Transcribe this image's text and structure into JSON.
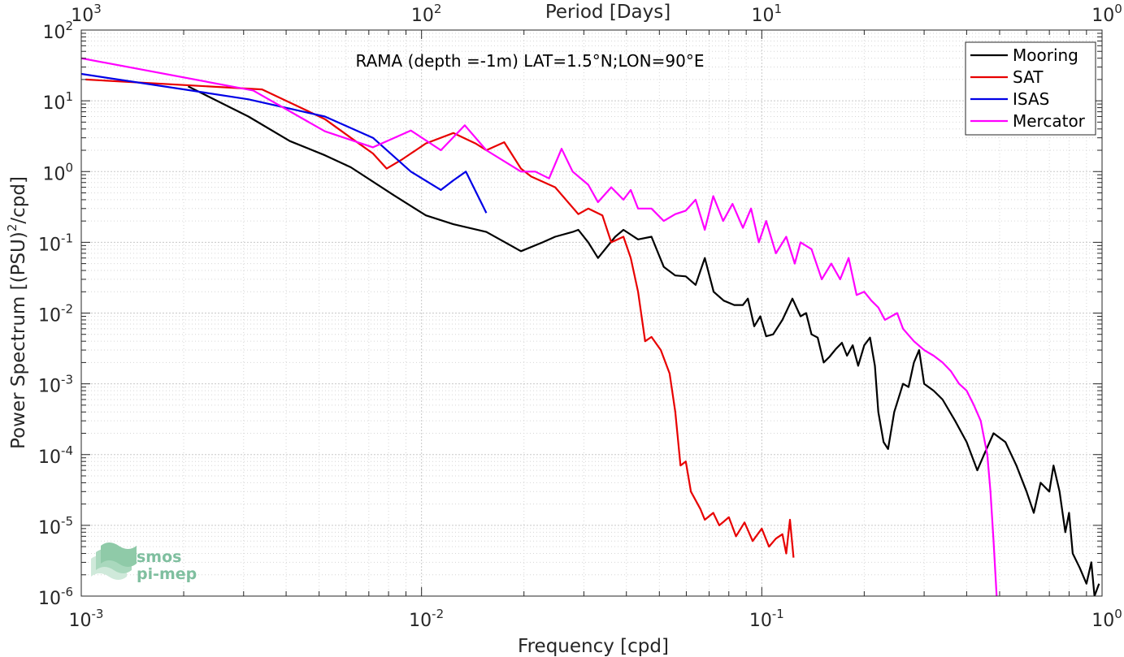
{
  "chart_data": {
    "type": "line",
    "title": "RAMA (depth =-1m) LAT=1.5°N;LON=90°E",
    "xlabel": "Frequency [cpd]",
    "ylabel_main": "Power Spectrum [(PSU)",
    "ylabel_sup": "2",
    "ylabel_tail": "/cpd]",
    "top_xlabel": "Period [Days]",
    "xscale": "log",
    "yscale": "log",
    "xlim": [
      0.001,
      1
    ],
    "ylim": [
      1e-06,
      100
    ],
    "grid": true,
    "legend_position": "top-right",
    "x_ticks": [
      {
        "value": 0.001,
        "base": "10",
        "exp": "-3"
      },
      {
        "value": 0.01,
        "base": "10",
        "exp": "-2"
      },
      {
        "value": 0.1,
        "base": "10",
        "exp": "-1"
      },
      {
        "value": 1,
        "base": "10",
        "exp": "0"
      }
    ],
    "top_ticks": [
      {
        "value": 0.001,
        "base": "10",
        "exp": "3"
      },
      {
        "value": 0.01,
        "base": "10",
        "exp": "2"
      },
      {
        "value": 0.1,
        "base": "10",
        "exp": "1"
      },
      {
        "value": 1,
        "base": "10",
        "exp": "0"
      }
    ],
    "y_ticks": [
      {
        "value": 1e-06,
        "base": "10",
        "exp": "-6"
      },
      {
        "value": 1e-05,
        "base": "10",
        "exp": "-5"
      },
      {
        "value": 0.0001,
        "base": "10",
        "exp": "-4"
      },
      {
        "value": 0.001,
        "base": "10",
        "exp": "-3"
      },
      {
        "value": 0.01,
        "base": "10",
        "exp": "-2"
      },
      {
        "value": 0.1,
        "base": "10",
        "exp": "-1"
      },
      {
        "value": 1,
        "base": "10",
        "exp": "0"
      },
      {
        "value": 10,
        "base": "10",
        "exp": "1"
      },
      {
        "value": 100,
        "base": "10",
        "exp": "2"
      }
    ],
    "series": [
      {
        "name": "Mooring",
        "color": "#000000",
        "points": [
          [
            0.00206,
            16
          ],
          [
            0.0031,
            6
          ],
          [
            0.0041,
            2.7
          ],
          [
            0.0052,
            1.7
          ],
          [
            0.0062,
            1.15
          ],
          [
            0.0083,
            0.46
          ],
          [
            0.0103,
            0.24
          ],
          [
            0.0124,
            0.18
          ],
          [
            0.0155,
            0.14
          ],
          [
            0.0196,
            0.075
          ],
          [
            0.0227,
            0.1
          ],
          [
            0.0247,
            0.12
          ],
          [
            0.0278,
            0.14
          ],
          [
            0.0289,
            0.15
          ],
          [
            0.0309,
            0.1
          ],
          [
            0.033,
            0.06
          ],
          [
            0.0371,
            0.12
          ],
          [
            0.0392,
            0.15
          ],
          [
            0.0433,
            0.11
          ],
          [
            0.0474,
            0.12
          ],
          [
            0.0515,
            0.045
          ],
          [
            0.0557,
            0.034
          ],
          [
            0.0598,
            0.033
          ],
          [
            0.0639,
            0.025
          ],
          [
            0.068,
            0.06
          ],
          [
            0.0722,
            0.02
          ],
          [
            0.0773,
            0.015
          ],
          [
            0.083,
            0.013
          ],
          [
            0.088,
            0.013
          ],
          [
            0.091,
            0.016
          ],
          [
            0.095,
            0.0065
          ],
          [
            0.099,
            0.009
          ],
          [
            0.103,
            0.0047
          ],
          [
            0.108,
            0.005
          ],
          [
            0.115,
            0.008
          ],
          [
            0.123,
            0.016
          ],
          [
            0.13,
            0.009
          ],
          [
            0.135,
            0.01
          ],
          [
            0.14,
            0.005
          ],
          [
            0.146,
            0.0045
          ],
          [
            0.152,
            0.002
          ],
          [
            0.158,
            0.0024
          ],
          [
            0.165,
            0.0031
          ],
          [
            0.172,
            0.0038
          ],
          [
            0.178,
            0.0025
          ],
          [
            0.185,
            0.0035
          ],
          [
            0.192,
            0.0018
          ],
          [
            0.2,
            0.0035
          ],
          [
            0.208,
            0.0045
          ],
          [
            0.215,
            0.0018
          ],
          [
            0.22,
            0.0004
          ],
          [
            0.228,
            0.00015
          ],
          [
            0.235,
            0.00012
          ],
          [
            0.245,
            0.0004
          ],
          [
            0.26,
            0.001
          ],
          [
            0.27,
            0.0009
          ],
          [
            0.28,
            0.002
          ],
          [
            0.29,
            0.003
          ],
          [
            0.3,
            0.001
          ],
          [
            0.32,
            0.0008
          ],
          [
            0.34,
            0.0006
          ],
          [
            0.37,
            0.0003
          ],
          [
            0.4,
            0.00015
          ],
          [
            0.43,
            6e-05
          ],
          [
            0.45,
            0.0001
          ],
          [
            0.48,
            0.0002
          ],
          [
            0.52,
            0.00015
          ],
          [
            0.56,
            7e-05
          ],
          [
            0.6,
            3e-05
          ],
          [
            0.63,
            1.5e-05
          ],
          [
            0.66,
            4e-05
          ],
          [
            0.7,
            3e-05
          ],
          [
            0.72,
            7e-05
          ],
          [
            0.75,
            3e-05
          ],
          [
            0.78,
            8e-06
          ],
          [
            0.8,
            1.5e-05
          ],
          [
            0.82,
            4e-06
          ],
          [
            0.86,
            2.5e-06
          ],
          [
            0.9,
            1.5e-06
          ],
          [
            0.93,
            3e-06
          ],
          [
            0.95,
            1e-06
          ],
          [
            0.98,
            1.5e-06
          ]
        ]
      },
      {
        "name": "SAT",
        "color": "#e80000",
        "points": [
          [
            0.00103,
            20
          ],
          [
            0.0034,
            14.5
          ],
          [
            0.0052,
            5.5
          ],
          [
            0.0062,
            3
          ],
          [
            0.0072,
            1.8
          ],
          [
            0.0079,
            1.1
          ],
          [
            0.0088,
            1.5
          ],
          [
            0.0103,
            2.5
          ],
          [
            0.0124,
            3.5
          ],
          [
            0.0144,
            2.5
          ],
          [
            0.0155,
            2
          ],
          [
            0.0175,
            2.6
          ],
          [
            0.0196,
            1.1
          ],
          [
            0.021,
            0.85
          ],
          [
            0.0247,
            0.6
          ],
          [
            0.0289,
            0.25
          ],
          [
            0.0309,
            0.3
          ],
          [
            0.034,
            0.24
          ],
          [
            0.0361,
            0.1
          ],
          [
            0.0392,
            0.12
          ],
          [
            0.0412,
            0.06
          ],
          [
            0.0433,
            0.02
          ],
          [
            0.0454,
            0.004
          ],
          [
            0.0474,
            0.0046
          ],
          [
            0.0505,
            0.003
          ],
          [
            0.0536,
            0.0014
          ],
          [
            0.0557,
            0.0004
          ],
          [
            0.0577,
            7e-05
          ],
          [
            0.0598,
            8e-05
          ],
          [
            0.0619,
            3e-05
          ],
          [
            0.066,
            1.7e-05
          ],
          [
            0.068,
            1.2e-05
          ],
          [
            0.072,
            1.5e-05
          ],
          [
            0.075,
            1e-05
          ],
          [
            0.08,
            1.3e-05
          ],
          [
            0.084,
            7e-06
          ],
          [
            0.089,
            1.1e-05
          ],
          [
            0.094,
            6e-06
          ],
          [
            0.1,
            9e-06
          ],
          [
            0.105,
            5e-06
          ],
          [
            0.11,
            6.5e-06
          ],
          [
            0.115,
            7.5e-06
          ],
          [
            0.118,
            4e-06
          ],
          [
            0.121,
            1.2e-05
          ],
          [
            0.124,
            3.5e-06
          ]
        ]
      },
      {
        "name": "ISAS",
        "color": "#0000e6",
        "points": [
          [
            0.001,
            24
          ],
          [
            0.0021,
            14
          ],
          [
            0.0031,
            10.5
          ],
          [
            0.0052,
            6
          ],
          [
            0.0072,
            3
          ],
          [
            0.0093,
            1
          ],
          [
            0.0114,
            0.55
          ],
          [
            0.0124,
            0.75
          ],
          [
            0.0135,
            1
          ],
          [
            0.0155,
            0.26
          ]
        ]
      },
      {
        "name": "Mercator",
        "color": "#ff00ff",
        "points": [
          [
            0.001,
            40
          ],
          [
            0.0032,
            14
          ],
          [
            0.0052,
            3.7
          ],
          [
            0.0072,
            2.2
          ],
          [
            0.0093,
            3.8
          ],
          [
            0.0114,
            2
          ],
          [
            0.0134,
            4.5
          ],
          [
            0.0155,
            2
          ],
          [
            0.0196,
            1
          ],
          [
            0.0216,
            1
          ],
          [
            0.0237,
            0.8
          ],
          [
            0.0258,
            2.1
          ],
          [
            0.0278,
            1
          ],
          [
            0.0309,
            0.65
          ],
          [
            0.033,
            0.37
          ],
          [
            0.0361,
            0.6
          ],
          [
            0.0392,
            0.4
          ],
          [
            0.0412,
            0.55
          ],
          [
            0.0433,
            0.3
          ],
          [
            0.0474,
            0.3
          ],
          [
            0.0515,
            0.2
          ],
          [
            0.0557,
            0.25
          ],
          [
            0.0598,
            0.28
          ],
          [
            0.0639,
            0.4
          ],
          [
            0.068,
            0.15
          ],
          [
            0.072,
            0.45
          ],
          [
            0.077,
            0.2
          ],
          [
            0.082,
            0.35
          ],
          [
            0.088,
            0.16
          ],
          [
            0.093,
            0.3
          ],
          [
            0.098,
            0.1
          ],
          [
            0.103,
            0.2
          ],
          [
            0.11,
            0.07
          ],
          [
            0.118,
            0.12
          ],
          [
            0.125,
            0.05
          ],
          [
            0.13,
            0.1
          ],
          [
            0.14,
            0.08
          ],
          [
            0.15,
            0.03
          ],
          [
            0.16,
            0.05
          ],
          [
            0.17,
            0.03
          ],
          [
            0.18,
            0.06
          ],
          [
            0.19,
            0.018
          ],
          [
            0.2,
            0.02
          ],
          [
            0.21,
            0.015
          ],
          [
            0.22,
            0.012
          ],
          [
            0.23,
            0.008
          ],
          [
            0.25,
            0.01
          ],
          [
            0.26,
            0.006
          ],
          [
            0.28,
            0.004
          ],
          [
            0.3,
            0.003
          ],
          [
            0.32,
            0.0025
          ],
          [
            0.34,
            0.002
          ],
          [
            0.36,
            0.0015
          ],
          [
            0.38,
            0.001
          ],
          [
            0.4,
            0.0008
          ],
          [
            0.42,
            0.0005
          ],
          [
            0.44,
            0.0003
          ],
          [
            0.46,
            0.0001
          ],
          [
            0.47,
            3e-05
          ],
          [
            0.48,
            6e-06
          ],
          [
            0.49,
            1e-06
          ]
        ]
      }
    ]
  },
  "logo": {
    "line1": "smos",
    "line2": "pi-mep"
  }
}
